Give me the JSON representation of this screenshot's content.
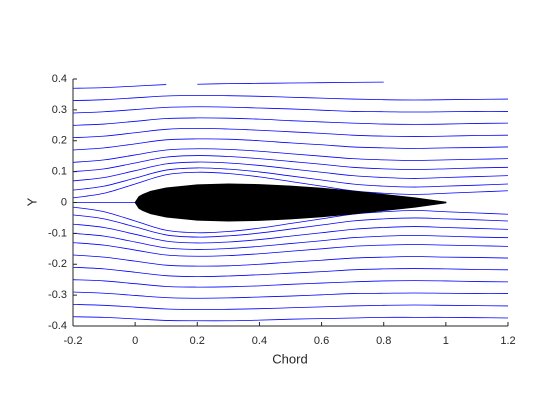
{
  "chart_data": {
    "type": "streamline",
    "xlabel": "Chord",
    "ylabel": "Y",
    "xlim": [
      -0.2,
      1.2
    ],
    "ylim": [
      -0.4,
      0.4
    ],
    "xticks": [
      -0.2,
      0,
      0.2,
      0.4,
      0.6,
      0.8,
      1,
      1.2
    ],
    "yticks": [
      -0.4,
      -0.3,
      -0.2,
      -0.1,
      0,
      0.1,
      0.2,
      0.3,
      0.4
    ],
    "line_color": "#0000ff",
    "airfoil": {
      "color": "#000000",
      "x": [
        0,
        0.0125,
        0.025,
        0.05,
        0.1,
        0.2,
        0.3,
        0.4,
        0.5,
        0.6,
        0.7,
        0.8,
        0.9,
        1
      ],
      "upper": [
        0,
        0.019,
        0.026,
        0.036,
        0.047,
        0.057,
        0.06,
        0.058,
        0.053,
        0.046,
        0.037,
        0.026,
        0.015,
        0.001
      ],
      "lower": [
        0,
        -0.019,
        -0.026,
        -0.036,
        -0.047,
        -0.057,
        -0.06,
        -0.058,
        -0.053,
        -0.046,
        -0.037,
        -0.026,
        -0.015,
        -0.001
      ]
    },
    "x": [
      -0.2,
      -0.1,
      0,
      0.1,
      0.2,
      0.3,
      0.4,
      0.5,
      0.6,
      0.7,
      0.8,
      0.9,
      1,
      1.1,
      1.2
    ],
    "series": [
      {
        "values": [
          0.37,
          0.372,
          0.377,
          0.382,
          null,
          null,
          null,
          null,
          null,
          null,
          null,
          null,
          null,
          null,
          null
        ]
      },
      {
        "values": [
          null,
          null,
          null,
          null,
          0.383,
          0.385,
          0.386,
          0.387,
          0.388,
          0.389,
          0.39,
          null,
          null,
          null,
          null
        ]
      },
      {
        "values": [
          0.33,
          0.333,
          0.339,
          0.345,
          0.347,
          0.346,
          0.344,
          0.341,
          0.338,
          0.335,
          0.333,
          0.332,
          0.333,
          0.334,
          0.335
        ]
      },
      {
        "values": [
          0.29,
          0.294,
          0.301,
          0.308,
          0.31,
          0.309,
          0.306,
          0.303,
          0.299,
          0.295,
          0.294,
          0.293,
          0.294,
          0.295,
          0.295
        ]
      },
      {
        "values": [
          0.25,
          0.254,
          0.263,
          0.272,
          0.274,
          0.273,
          0.27,
          0.265,
          0.261,
          0.257,
          0.254,
          0.253,
          0.254,
          0.256,
          0.257
        ]
      },
      {
        "values": [
          0.21,
          0.215,
          0.226,
          0.237,
          0.24,
          0.238,
          0.234,
          0.229,
          0.224,
          0.218,
          0.215,
          0.214,
          0.215,
          0.217,
          0.218
        ]
      },
      {
        "values": [
          0.17,
          0.177,
          0.19,
          0.203,
          0.206,
          0.205,
          0.2,
          0.193,
          0.187,
          0.18,
          0.177,
          0.175,
          0.177,
          0.178,
          0.18
        ]
      },
      {
        "values": [
          0.13,
          0.138,
          0.154,
          0.17,
          0.174,
          0.172,
          0.166,
          0.158,
          0.15,
          0.142,
          0.138,
          0.136,
          0.138,
          0.14,
          0.142
        ]
      },
      {
        "values": [
          0.1,
          0.109,
          0.128,
          0.147,
          0.152,
          0.149,
          0.142,
          0.133,
          0.124,
          0.114,
          0.109,
          0.107,
          0.109,
          0.112,
          0.114
        ]
      },
      {
        "values": [
          0.07,
          0.081,
          0.103,
          0.125,
          0.131,
          0.128,
          0.12,
          0.109,
          0.098,
          0.087,
          0.081,
          0.078,
          0.081,
          0.084,
          0.087
        ]
      },
      {
        "values": [
          0.04,
          0.053,
          0.079,
          0.105,
          0.112,
          0.108,
          0.099,
          0.086,
          0.073,
          0.06,
          0.053,
          0.05,
          0.053,
          0.056,
          0.06
        ]
      },
      {
        "values": [
          0.015,
          0.03,
          0.06,
          0.09,
          0.098,
          0.094,
          0.083,
          0.068,
          0.053,
          0.038,
          0.03,
          0.026,
          0.03,
          0.034,
          0.038
        ]
      },
      {
        "values": [
          0,
          0,
          0,
          null,
          null,
          null,
          null,
          null,
          null,
          null,
          null,
          null,
          null,
          null,
          null
        ]
      },
      {
        "values": [
          -0.015,
          -0.03,
          -0.06,
          -0.09,
          -0.098,
          -0.094,
          -0.083,
          -0.068,
          -0.053,
          -0.038,
          -0.03,
          -0.026,
          -0.03,
          -0.034,
          -0.038
        ]
      },
      {
        "values": [
          -0.04,
          -0.053,
          -0.079,
          -0.105,
          -0.112,
          -0.108,
          -0.099,
          -0.086,
          -0.073,
          -0.06,
          -0.053,
          -0.05,
          -0.053,
          -0.056,
          -0.06
        ]
      },
      {
        "values": [
          -0.07,
          -0.081,
          -0.103,
          -0.125,
          -0.131,
          -0.128,
          -0.12,
          -0.109,
          -0.098,
          -0.087,
          -0.081,
          -0.078,
          -0.081,
          -0.084,
          -0.087
        ]
      },
      {
        "values": [
          -0.1,
          -0.109,
          -0.128,
          -0.147,
          -0.152,
          -0.149,
          -0.142,
          -0.133,
          -0.124,
          -0.114,
          -0.109,
          -0.107,
          -0.109,
          -0.112,
          -0.114
        ]
      },
      {
        "values": [
          -0.13,
          -0.138,
          -0.154,
          -0.17,
          -0.174,
          -0.172,
          -0.166,
          -0.158,
          -0.15,
          -0.142,
          -0.138,
          -0.136,
          -0.138,
          -0.14,
          -0.142
        ]
      },
      {
        "values": [
          -0.17,
          -0.177,
          -0.19,
          -0.203,
          -0.206,
          -0.205,
          -0.2,
          -0.193,
          -0.187,
          -0.18,
          -0.177,
          -0.175,
          -0.177,
          -0.178,
          -0.18
        ]
      },
      {
        "values": [
          -0.21,
          -0.215,
          -0.226,
          -0.237,
          -0.24,
          -0.238,
          -0.234,
          -0.229,
          -0.224,
          -0.218,
          -0.215,
          -0.214,
          -0.215,
          -0.217,
          -0.218
        ]
      },
      {
        "values": [
          -0.25,
          -0.254,
          -0.263,
          -0.272,
          -0.274,
          -0.273,
          -0.27,
          -0.265,
          -0.261,
          -0.257,
          -0.254,
          -0.253,
          -0.254,
          -0.256,
          -0.257
        ]
      },
      {
        "values": [
          -0.29,
          -0.294,
          -0.301,
          -0.308,
          -0.31,
          -0.309,
          -0.306,
          -0.303,
          -0.299,
          -0.295,
          -0.294,
          -0.293,
          -0.294,
          -0.295,
          -0.295
        ]
      },
      {
        "values": [
          -0.33,
          -0.333,
          -0.339,
          -0.345,
          -0.347,
          -0.346,
          -0.344,
          -0.341,
          -0.338,
          -0.335,
          -0.333,
          -0.332,
          -0.333,
          -0.334,
          -0.335
        ]
      },
      {
        "values": [
          -0.37,
          -0.372,
          -0.377,
          -0.382,
          -0.383,
          -0.383,
          -0.381,
          -0.378,
          -0.376,
          -0.374,
          -0.372,
          -0.372,
          -0.372,
          -0.373,
          -0.374
        ]
      }
    ]
  }
}
